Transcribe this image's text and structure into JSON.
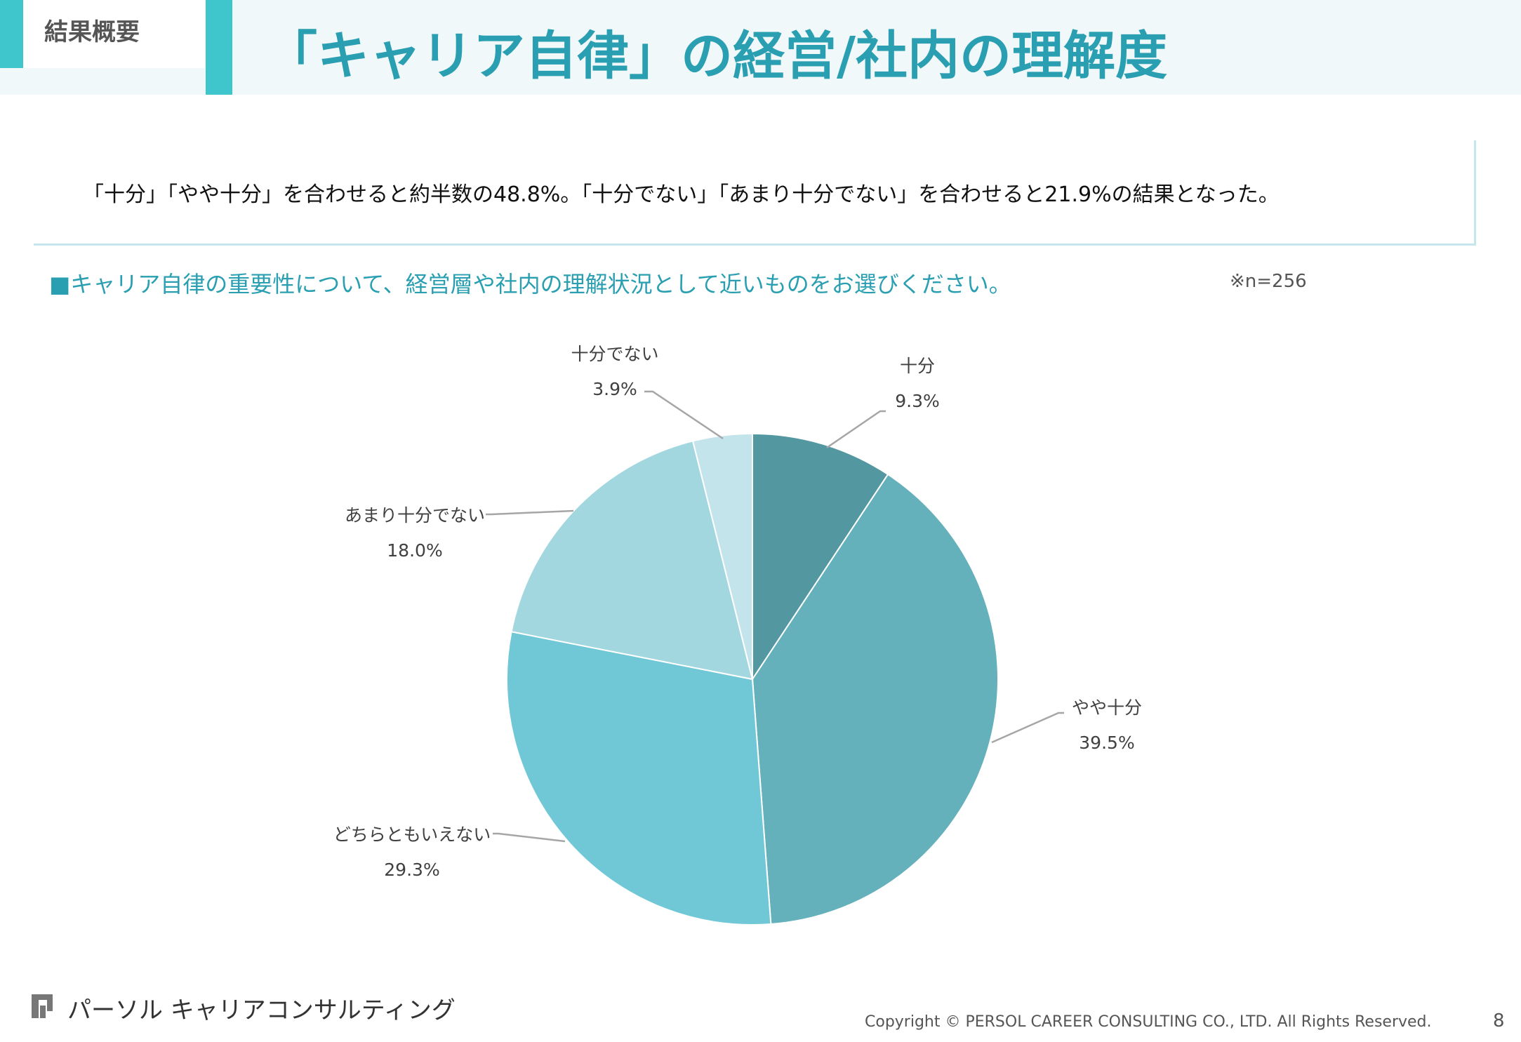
{
  "header": {
    "section_label": "結果概要",
    "title": "「キャリア自律」の経営/社内の理解度"
  },
  "summary": "「十分」「やや十分」を合わせると約半数の48.8%。「十分でない」「あまり十分でない」を合わせると21.9%の結果となった。",
  "question": "■キャリア自律の重要性について、経営層や社内の理解状況として近いものをお選びください。",
  "sample_size": "※n=256",
  "chart_data": {
    "type": "pie",
    "title": "",
    "categories": [
      "十分",
      "やや十分",
      "どちらともいえない",
      "あまり十分でない",
      "十分でない"
    ],
    "values": [
      9.3,
      39.5,
      29.3,
      18.0,
      3.9
    ],
    "value_labels": [
      "9.3%",
      "39.5%",
      "29.3%",
      "18.0%",
      "3.9%"
    ],
    "colors": [
      "#5397a0",
      "#64b0bb",
      "#70c8d7",
      "#a3d7e0",
      "#c2e4ea"
    ],
    "start": "12 o'clock, clockwise",
    "legend": "none"
  },
  "footer": {
    "brand_mark": "PERSOL",
    "brand": "パーソル キャリアコンサルティング",
    "copyright": "Copyright © PERSOL CAREER CONSULTING CO., LTD. All Rights Reserved.",
    "page_number": "8"
  }
}
